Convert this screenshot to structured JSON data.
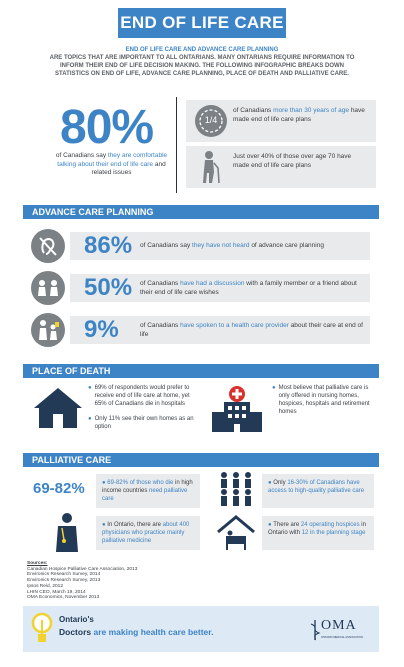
{
  "header": {
    "title": "END OF LIFE CARE"
  },
  "intro": {
    "lead": "END OF LIFE CARE AND ADVANCE CARE PLANNING",
    "body": "ARE TOPICS THAT ARE IMPORTANT TO ALL ONTARIANS. MANY ONTARIANS REQUIRE INFORMATION TO INFORM THEIR END OF LIFE DECISION MAKING. THE FOLLOWING INFOGRAPHIC BREAKS DOWN STATISTICS ON END OF LIFE, ADVANCE CARE PLANNING, PLACE OF DEATH AND PALLIATIVE CARE."
  },
  "top": {
    "big_value": "80%",
    "big_text_a": "of Canadians say ",
    "big_text_b": "they are comfortable talking about their end of life care",
    "big_text_c": " and related issues",
    "quarter_glyph": "1/4",
    "stat1_a": "of Canadians ",
    "stat1_b": "more than 30 years of age",
    "stat1_c": " have made end of life care plans",
    "stat2": "Just over 40% of those over age 70 have made end of life care plans"
  },
  "advance": {
    "title": "ADVANCE CARE PLANNING",
    "items": [
      {
        "value": "86%",
        "a": "of Canadians say ",
        "b": "they have not heard",
        "c": " of advance care planning",
        "icon": "ear-crossed-icon"
      },
      {
        "value": "50%",
        "a": "of Canadians ",
        "b": "have had a discussion",
        "c": " with a family member or a friend about their end of life care wishes",
        "icon": "people-talking-icon"
      },
      {
        "value": "9%",
        "a": "of Canadians ",
        "b": "have spoken to a health care provider",
        "c": " about their care at end of life",
        "icon": "doctor-patient-icon"
      }
    ]
  },
  "place": {
    "title": "PLACE OF DEATH",
    "left1": "69% of respondents would prefer to receive end of life care at home, yet 65% of Canadians die in hospitals",
    "left2": "Only 11% see their own homes as an option",
    "right": "Most believe that palliative care is only offered in nursing homes, hospices, hospitals and retirement homes"
  },
  "palliative": {
    "title": "PALLIATIVE CARE",
    "big": "69-82%",
    "box1_a": "69-82% of those who die",
    "box1_b": " in high income countries ",
    "box1_c": "need palliative care",
    "box2_a": "Only ",
    "box2_b": "16-30% of Canadians have access to high-quality palliative care",
    "box3_a": "In Ontario, there are ",
    "box3_b": "about 400 physicians who practice mainly palliative medicine",
    "box4_a": "There are ",
    "box4_b": "24 operating hospices",
    "box4_c": " in Ontario with ",
    "box4_d": "12 in the planning stage"
  },
  "sources": {
    "title": "Sources:",
    "lines": [
      "Canadian Hospice Palliative Care Association, 2013",
      "Environics Research Survey, 2014",
      "Environics Research Survey, 2013",
      "Ipsos Reid, 2012",
      "LHIN CEO, March 19, 2014",
      "OMA Economics, November 2013"
    ]
  },
  "footer": {
    "line1": "Ontario's",
    "line2a": "Doctors",
    "line2b": " are making health care better.",
    "logo": "OMA",
    "logo_sub": "ONTARIO MEDICAL ASSOCIATION"
  },
  "colors": {
    "accent": "#3d84c6",
    "panel": "#e9eaeb",
    "icon": "#7c8186",
    "footer_bg": "#dde9f5",
    "hospital_red": "#d9322e",
    "logo_yellow": "#f2d22e"
  }
}
